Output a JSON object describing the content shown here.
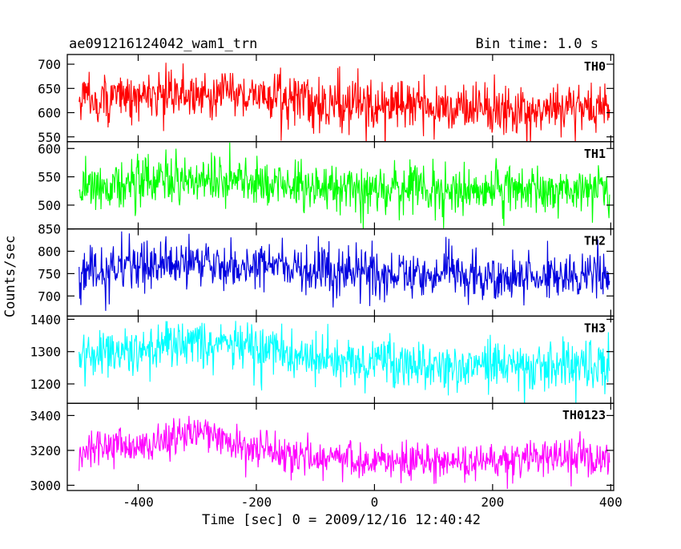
{
  "chart_data": {
    "type": "line",
    "title": "ae091216124042_wam1_trn",
    "subtitle": "Bin time: 1.0 s",
    "xlabel": "Time [sec] 0 = 2009/12/16 12:40:42",
    "ylabel": "Counts/sec",
    "xlim": [
      -520,
      405
    ],
    "xticks": [
      -400,
      -200,
      0,
      200,
      400
    ],
    "x_start": -500,
    "x_end": 398,
    "x_step": 1,
    "colors": {
      "TH0": "#ff0000",
      "TH1": "#00ff00",
      "TH2": "#0000e0",
      "TH3": "#00ffff",
      "TH0123": "#ff00ff"
    },
    "series": [
      {
        "name": "TH0",
        "ylim": [
          540,
          720
        ],
        "yticks": [
          550,
          600,
          650,
          700
        ],
        "trend_x": [
          -500,
          -400,
          -300,
          -250,
          -200,
          -100,
          0,
          100,
          200,
          300,
          398
        ],
        "trend_y": [
          628,
          632,
          640,
          642,
          635,
          622,
          614,
          610,
          610,
          608,
          610
        ],
        "noise_sd": 26
      },
      {
        "name": "TH1",
        "ylim": [
          458,
          612
        ],
        "yticks": [
          500,
          550,
          600
        ],
        "trend_x": [
          -500,
          -400,
          -300,
          -200,
          -100,
          0,
          100,
          200,
          300,
          398
        ],
        "trend_y": [
          535,
          538,
          545,
          540,
          532,
          528,
          527,
          526,
          527,
          528
        ],
        "noise_sd": 22
      },
      {
        "name": "TH2",
        "ylim": [
          655,
          850
        ],
        "yticks": [
          700,
          750,
          800,
          850
        ],
        "trend_x": [
          -500,
          -400,
          -300,
          -200,
          -100,
          0,
          100,
          200,
          300,
          398
        ],
        "trend_y": [
          758,
          762,
          775,
          768,
          758,
          750,
          748,
          746,
          748,
          748
        ],
        "noise_sd": 27
      },
      {
        "name": "TH3",
        "ylim": [
          1140,
          1410
        ],
        "yticks": [
          1200,
          1300,
          1400
        ],
        "trend_x": [
          -500,
          -400,
          -300,
          -250,
          -200,
          -100,
          0,
          100,
          200,
          300,
          398
        ],
        "trend_y": [
          1298,
          1305,
          1325,
          1328,
          1300,
          1278,
          1265,
          1258,
          1258,
          1257,
          1258
        ],
        "noise_sd": 38
      },
      {
        "name": "TH0123",
        "ylim": [
          2970,
          3470
        ],
        "yticks": [
          3000,
          3200,
          3400
        ],
        "trend_x": [
          -500,
          -400,
          -350,
          -300,
          -250,
          -200,
          -100,
          0,
          100,
          200,
          300,
          398
        ],
        "trend_y": [
          3200,
          3230,
          3265,
          3300,
          3265,
          3195,
          3165,
          3150,
          3140,
          3135,
          3140,
          3145
        ],
        "noise_sd": 55
      }
    ]
  }
}
